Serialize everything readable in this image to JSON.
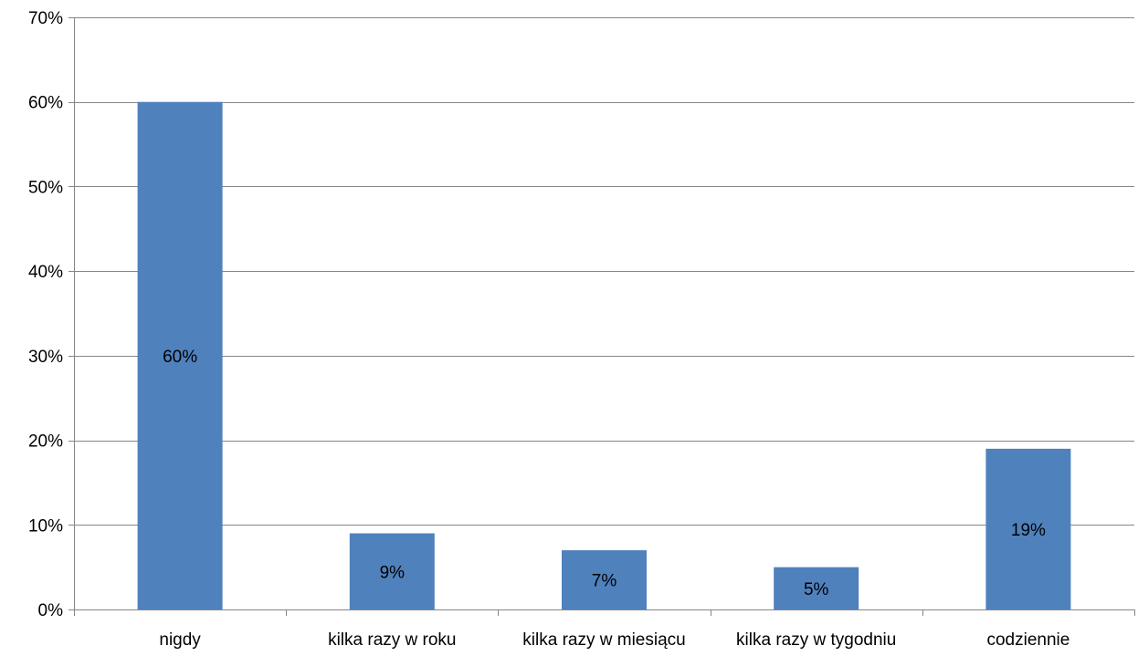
{
  "chart_data": {
    "type": "bar",
    "title": "",
    "xlabel": "",
    "ylabel": "",
    "categories": [
      "nigdy",
      "kilka razy w roku",
      "kilka razy w miesiącu",
      "kilka razy w tygodniu",
      "codziennie"
    ],
    "values": [
      60,
      9,
      7,
      5,
      19
    ],
    "data_labels": [
      "60%",
      "9%",
      "7%",
      "5%",
      "19%"
    ],
    "ylim": [
      0,
      70
    ],
    "yticks": [
      0,
      10,
      20,
      30,
      40,
      50,
      60,
      70
    ],
    "ytick_labels": [
      "0%",
      "10%",
      "20%",
      "30%",
      "40%",
      "50%",
      "60%",
      "70%"
    ],
    "grid": true,
    "legend": "none",
    "bar_color": "#4F81BD",
    "grid_color": "#868686"
  }
}
